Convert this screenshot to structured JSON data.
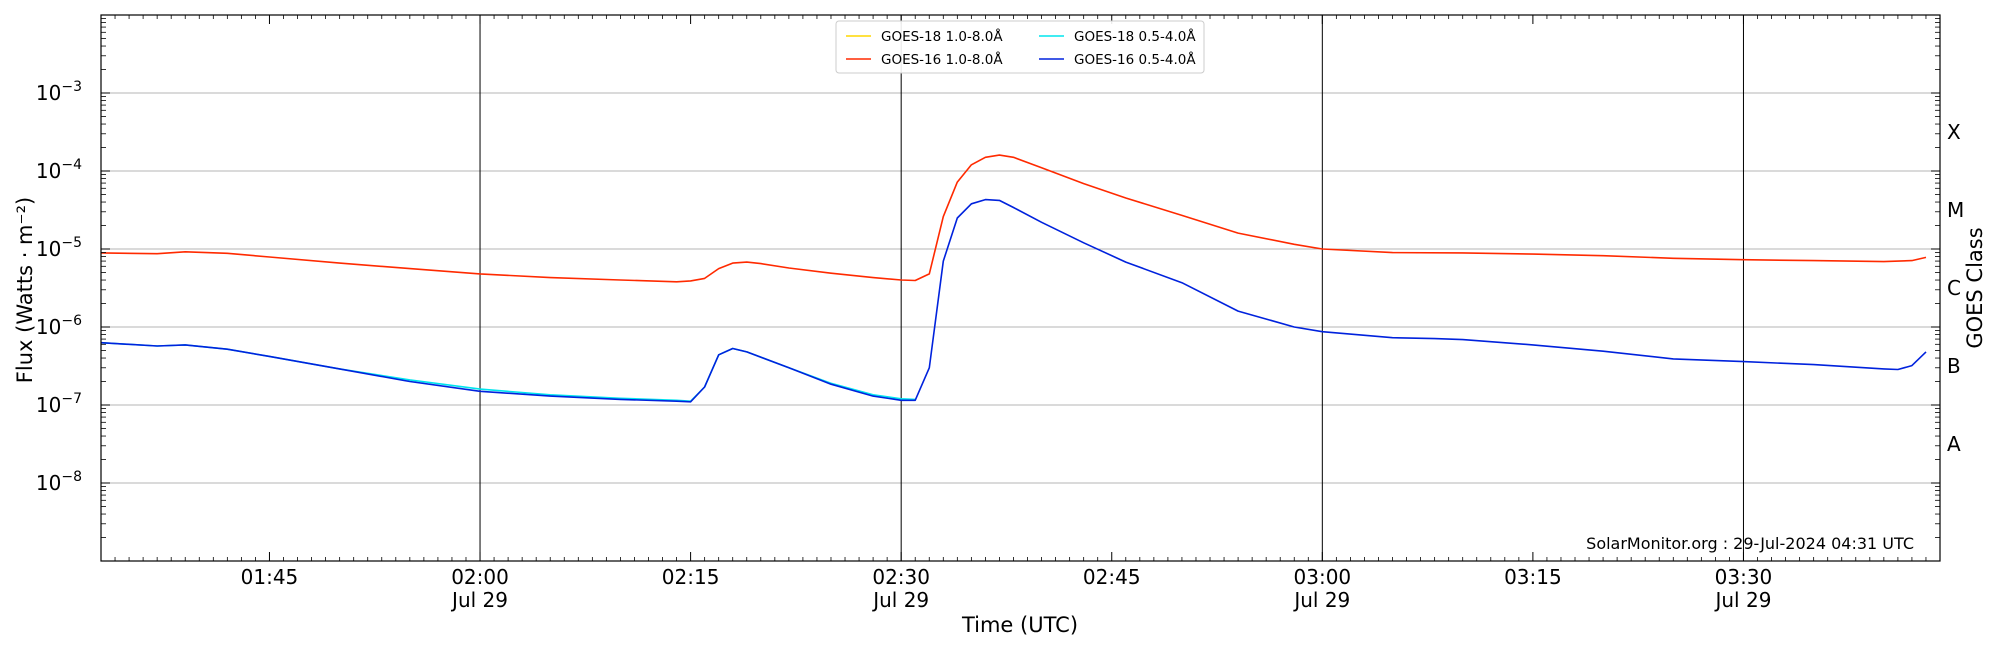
{
  "chart_data": {
    "type": "line",
    "title": "",
    "xlabel": "Time (UTC)",
    "ylabel": "Flux (Watts · m⁻²)",
    "ylabel_right": "GOES Class",
    "y_scale": "log",
    "ylim": [
      1e-09,
      0.01
    ],
    "xlim": [
      "01:33",
      "03:44"
    ],
    "y_ticks": [
      {
        "value": 1e-08,
        "base": "10",
        "exp": "−8"
      },
      {
        "value": 1e-07,
        "base": "10",
        "exp": "−7"
      },
      {
        "value": 1e-06,
        "base": "10",
        "exp": "−6"
      },
      {
        "value": 1e-05,
        "base": "10",
        "exp": "−5"
      },
      {
        "value": 0.0001,
        "base": "10",
        "exp": "−4"
      },
      {
        "value": 0.001,
        "base": "10",
        "exp": "−3"
      }
    ],
    "x_ticks": [
      {
        "t": "01:45",
        "label": "01:45",
        "date": ""
      },
      {
        "t": "02:00",
        "label": "02:00",
        "date": "Jul 29"
      },
      {
        "t": "02:15",
        "label": "02:15",
        "date": ""
      },
      {
        "t": "02:30",
        "label": "02:30",
        "date": "Jul 29"
      },
      {
        "t": "02:45",
        "label": "02:45",
        "date": ""
      },
      {
        "t": "03:00",
        "label": "03:00",
        "date": "Jul 29"
      },
      {
        "t": "03:15",
        "label": "03:15",
        "date": ""
      },
      {
        "t": "03:30",
        "label": "03:30",
        "date": "Jul 29"
      }
    ],
    "day_lines": [
      "02:00",
      "02:30",
      "03:00",
      "03:30"
    ],
    "goes_classes": [
      {
        "label": "A",
        "value": 3.16e-08
      },
      {
        "label": "B",
        "value": 3.16e-07
      },
      {
        "label": "C",
        "value": 3.16e-06
      },
      {
        "label": "M",
        "value": 3.16e-05
      },
      {
        "label": "X",
        "value": 0.000316
      }
    ],
    "grid": "horizontal at decades",
    "legend_position": "top-center",
    "credit": "SolarMonitor.org : 29-Jul-2024 04:31 UTC",
    "series": [
      {
        "name": "GOES-18 1.0-8.0Å",
        "color": "#ffd700",
        "points": []
      },
      {
        "name": "GOES-16 1.0-8.0Å",
        "color": "#ff2a00",
        "points": [
          [
            "01:33",
            8.9e-06
          ],
          [
            "01:37",
            8.7e-06
          ],
          [
            "01:39",
            9.2e-06
          ],
          [
            "01:42",
            8.8e-06
          ],
          [
            "01:45",
            7.9e-06
          ],
          [
            "01:50",
            6.6e-06
          ],
          [
            "01:55",
            5.6e-06
          ],
          [
            "02:00",
            4.8e-06
          ],
          [
            "02:05",
            4.3e-06
          ],
          [
            "02:10",
            4e-06
          ],
          [
            "02:14",
            3.8e-06
          ],
          [
            "02:15",
            3.9e-06
          ],
          [
            "02:16",
            4.2e-06
          ],
          [
            "02:17",
            5.6e-06
          ],
          [
            "02:18",
            6.6e-06
          ],
          [
            "02:19",
            6.8e-06
          ],
          [
            "02:20",
            6.5e-06
          ],
          [
            "02:22",
            5.7e-06
          ],
          [
            "02:25",
            4.9e-06
          ],
          [
            "02:28",
            4.3e-06
          ],
          [
            "02:30",
            4e-06
          ],
          [
            "02:31",
            3.95e-06
          ],
          [
            "02:32",
            4.8e-06
          ],
          [
            "02:33",
            2.6e-05
          ],
          [
            "02:34",
            7.2e-05
          ],
          [
            "02:35",
            0.00012
          ],
          [
            "02:36",
            0.00015
          ],
          [
            "02:37",
            0.00016
          ],
          [
            "02:38",
            0.00015
          ],
          [
            "02:40",
            0.00011
          ],
          [
            "02:43",
            6.9e-05
          ],
          [
            "02:46",
            4.5e-05
          ],
          [
            "02:50",
            2.7e-05
          ],
          [
            "02:54",
            1.6e-05
          ],
          [
            "02:58",
            1.15e-05
          ],
          [
            "03:00",
            1e-05
          ],
          [
            "03:05",
            9e-06
          ],
          [
            "03:10",
            8.9e-06
          ],
          [
            "03:15",
            8.6e-06
          ],
          [
            "03:20",
            8.2e-06
          ],
          [
            "03:25",
            7.6e-06
          ],
          [
            "03:30",
            7.3e-06
          ],
          [
            "03:35",
            7.1e-06
          ],
          [
            "03:40",
            6.9e-06
          ],
          [
            "03:42",
            7.1e-06
          ],
          [
            "03:43",
            7.8e-06
          ]
        ]
      },
      {
        "name": "GOES-18 0.5-4.0Å",
        "color": "#00e5ee",
        "points": [
          [
            "01:33",
            6.3e-07
          ],
          [
            "01:37",
            5.7e-07
          ],
          [
            "01:39",
            5.9e-07
          ],
          [
            "01:42",
            5.2e-07
          ],
          [
            "01:45",
            4.2e-07
          ],
          [
            "01:50",
            2.9e-07
          ],
          [
            "01:55",
            2.1e-07
          ],
          [
            "02:00",
            1.6e-07
          ],
          [
            "02:05",
            1.35e-07
          ],
          [
            "02:10",
            1.22e-07
          ],
          [
            "02:14",
            1.15e-07
          ],
          [
            "02:15",
            1.12e-07
          ],
          [
            "02:16",
            1.7e-07
          ],
          [
            "02:17",
            4.4e-07
          ],
          [
            "02:18",
            5.3e-07
          ],
          [
            "02:19",
            4.8e-07
          ],
          [
            "02:22",
            3e-07
          ],
          [
            "02:25",
            1.9e-07
          ],
          [
            "02:28",
            1.35e-07
          ],
          [
            "02:30",
            1.2e-07
          ],
          [
            "02:31",
            1.18e-07
          ]
        ]
      },
      {
        "name": "GOES-16 0.5-4.0Å",
        "color": "#0022dd",
        "points": [
          [
            "01:33",
            6.3e-07
          ],
          [
            "01:37",
            5.7e-07
          ],
          [
            "01:39",
            5.9e-07
          ],
          [
            "01:42",
            5.2e-07
          ],
          [
            "01:45",
            4.2e-07
          ],
          [
            "01:50",
            2.9e-07
          ],
          [
            "01:55",
            2e-07
          ],
          [
            "02:00",
            1.5e-07
          ],
          [
            "02:05",
            1.3e-07
          ],
          [
            "02:10",
            1.18e-07
          ],
          [
            "02:14",
            1.12e-07
          ],
          [
            "02:15",
            1.1e-07
          ],
          [
            "02:16",
            1.7e-07
          ],
          [
            "02:17",
            4.4e-07
          ],
          [
            "02:18",
            5.3e-07
          ],
          [
            "02:19",
            4.8e-07
          ],
          [
            "02:22",
            3e-07
          ],
          [
            "02:25",
            1.85e-07
          ],
          [
            "02:28",
            1.3e-07
          ],
          [
            "02:30",
            1.15e-07
          ],
          [
            "02:31",
            1.15e-07
          ],
          [
            "02:32",
            3e-07
          ],
          [
            "02:33",
            7e-06
          ],
          [
            "02:34",
            2.5e-05
          ],
          [
            "02:35",
            3.8e-05
          ],
          [
            "02:36",
            4.3e-05
          ],
          [
            "02:37",
            4.2e-05
          ],
          [
            "02:38",
            3.4e-05
          ],
          [
            "02:40",
            2.2e-05
          ],
          [
            "02:43",
            1.2e-05
          ],
          [
            "02:46",
            6.8e-06
          ],
          [
            "02:50",
            3.7e-06
          ],
          [
            "02:54",
            1.6e-06
          ],
          [
            "02:58",
            1e-06
          ],
          [
            "03:00",
            8.7e-07
          ],
          [
            "03:05",
            7.3e-07
          ],
          [
            "03:08",
            7.1e-07
          ],
          [
            "03:10",
            6.9e-07
          ],
          [
            "03:15",
            5.9e-07
          ],
          [
            "03:20",
            4.9e-07
          ],
          [
            "03:25",
            3.9e-07
          ],
          [
            "03:30",
            3.6e-07
          ],
          [
            "03:35",
            3.3e-07
          ],
          [
            "03:40",
            2.9e-07
          ],
          [
            "03:41",
            2.85e-07
          ],
          [
            "03:42",
            3.2e-07
          ],
          [
            "03:43",
            4.8e-07
          ]
        ]
      }
    ]
  }
}
